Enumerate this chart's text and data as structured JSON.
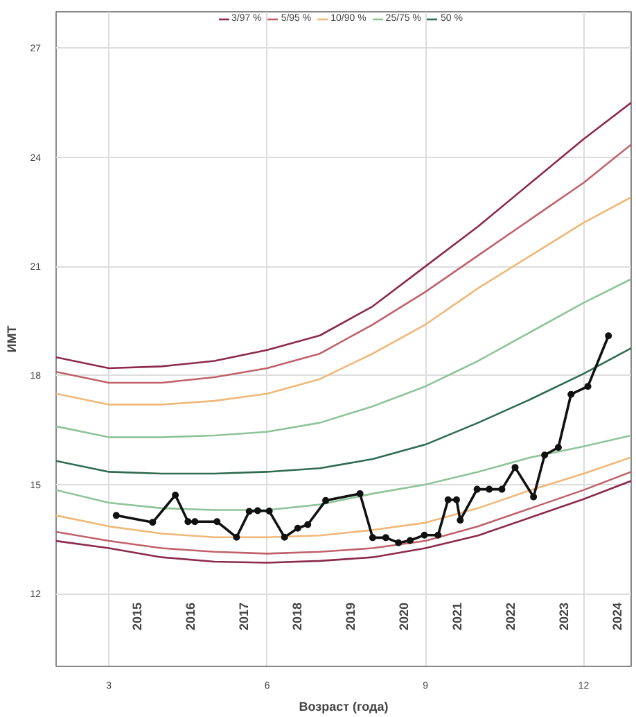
{
  "chart_data": {
    "type": "line",
    "xlabel": "Возраст (года)",
    "ylabel": "ИМТ",
    "xlim": [
      2,
      12.9
    ],
    "ylim": [
      10,
      28
    ],
    "xticks": [
      3,
      6,
      9,
      12
    ],
    "yticks": [
      12,
      15,
      18,
      21,
      24,
      27
    ],
    "grid": true,
    "legend": "top",
    "marker": "none",
    "line_style": "solid",
    "series": [
      {
        "name": "3/97 %",
        "color": "#8b2a4a",
        "x": [
          2,
          3,
          4,
          5,
          6,
          7,
          8,
          9,
          10,
          11,
          12,
          12.9
        ],
        "values": [
          18.5,
          18.2,
          18.25,
          18.4,
          18.7,
          19.1,
          19.9,
          21.0,
          22.1,
          23.3,
          24.5,
          25.5
        ]
      },
      {
        "name": "5/95 %",
        "color": "#c0616a",
        "x": [
          2,
          3,
          4,
          5,
          6,
          7,
          8,
          9,
          10,
          11,
          12,
          12.9
        ],
        "values": [
          18.1,
          17.8,
          17.8,
          17.95,
          18.2,
          18.6,
          19.4,
          20.3,
          21.3,
          22.3,
          23.3,
          24.35
        ]
      },
      {
        "name": "10/90 %",
        "color": "#f0b878",
        "x": [
          2,
          3,
          4,
          5,
          6,
          7,
          8,
          9,
          10,
          11,
          12,
          12.9
        ],
        "values": [
          17.5,
          17.2,
          17.2,
          17.3,
          17.5,
          17.9,
          18.6,
          19.4,
          20.4,
          21.3,
          22.2,
          22.9
        ]
      },
      {
        "name": "25/75 %",
        "color": "#8fc49a",
        "x": [
          2,
          3,
          4,
          5,
          6,
          7,
          8,
          9,
          10,
          11,
          12,
          12.9
        ],
        "values": [
          16.6,
          16.3,
          16.3,
          16.35,
          16.45,
          16.7,
          17.15,
          17.7,
          18.4,
          19.2,
          20.0,
          20.65
        ]
      },
      {
        "name": "50 %",
        "color": "#2e6b4f",
        "x": [
          2,
          3,
          4,
          5,
          6,
          7,
          8,
          9,
          10,
          11,
          12,
          12.9
        ],
        "values": [
          15.65,
          15.35,
          15.3,
          15.3,
          15.35,
          15.45,
          15.7,
          16.1,
          16.7,
          17.35,
          18.05,
          18.75
        ]
      },
      {
        "color": "#8fc49a",
        "x": [
          2,
          3,
          4,
          5,
          6,
          7,
          8,
          9,
          10,
          11,
          12,
          12.9
        ],
        "values": [
          14.85,
          14.5,
          14.35,
          14.3,
          14.3,
          14.45,
          14.75,
          15.0,
          15.35,
          15.75,
          16.05,
          16.35
        ]
      },
      {
        "color": "#f0b878",
        "x": [
          2,
          3,
          4,
          5,
          6,
          7,
          8,
          9,
          10,
          11,
          12,
          12.9
        ],
        "values": [
          14.15,
          13.85,
          13.65,
          13.55,
          13.55,
          13.6,
          13.75,
          13.95,
          14.35,
          14.85,
          15.3,
          15.75
        ]
      },
      {
        "color": "#c0616a",
        "x": [
          2,
          3,
          4,
          5,
          6,
          7,
          8,
          9,
          10,
          11,
          12,
          12.9
        ],
        "values": [
          13.7,
          13.45,
          13.25,
          13.15,
          13.1,
          13.15,
          13.25,
          13.45,
          13.85,
          14.35,
          14.85,
          15.35
        ]
      },
      {
        "color": "#8b2a4a",
        "x": [
          2,
          3,
          4,
          5,
          6,
          7,
          8,
          9,
          10,
          11,
          12,
          12.9
        ],
        "values": [
          13.45,
          13.25,
          13.0,
          12.88,
          12.85,
          12.9,
          13.0,
          13.25,
          13.6,
          14.1,
          14.6,
          15.1
        ]
      },
      {
        "color": "#111111",
        "marker": "circle",
        "x": [
          3.14,
          3.83,
          4.26,
          4.5,
          4.63,
          5.05,
          5.42,
          5.66,
          5.82,
          6.04,
          6.33,
          6.58,
          6.77,
          7.11,
          7.76,
          8.0,
          8.25,
          8.49,
          8.71,
          8.98,
          9.24,
          9.43,
          9.59,
          9.66,
          9.98,
          10.21,
          10.45,
          10.7,
          11.05,
          11.26,
          11.52,
          11.76,
          12.08,
          12.47
        ],
        "values": [
          14.15,
          13.96,
          14.71,
          13.98,
          13.98,
          13.98,
          13.55,
          14.26,
          14.28,
          14.27,
          13.55,
          13.8,
          13.9,
          14.56,
          14.75,
          13.54,
          13.54,
          13.4,
          13.46,
          13.61,
          13.61,
          14.58,
          14.58,
          14.02,
          14.87,
          14.87,
          14.87,
          15.47,
          14.66,
          15.81,
          16.02,
          17.48,
          17.7,
          19.09
        ]
      }
    ],
    "annotations": [
      "2015",
      "2016",
      "2017",
      "2018",
      "2019",
      "2020",
      "2021",
      "2022",
      "2023",
      "2024"
    ]
  }
}
